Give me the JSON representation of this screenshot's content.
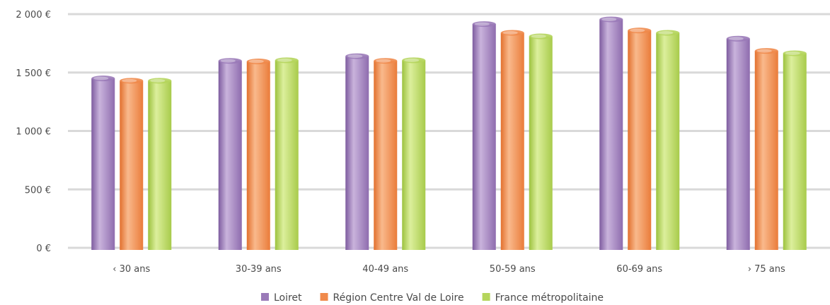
{
  "chart_data": {
    "type": "bar",
    "categories": [
      "‹ 30 ans",
      "30-39 ans",
      "40-49 ans",
      "50-59 ans",
      "60-69 ans",
      "› 75 ans"
    ],
    "series": [
      {
        "name": "Loiret",
        "color": "#9a7ab8",
        "values": [
          1450,
          1600,
          1640,
          1915,
          1955,
          1790
        ]
      },
      {
        "name": "Région Centre Val de Loire",
        "color": "#f08a4b",
        "values": [
          1430,
          1595,
          1600,
          1840,
          1860,
          1685
        ]
      },
      {
        "name": "France métropolitaine",
        "color": "#b5d55c",
        "values": [
          1430,
          1605,
          1605,
          1810,
          1840,
          1665
        ]
      }
    ],
    "y_ticks": [
      {
        "value": 0,
        "label": "0 €"
      },
      {
        "value": 500,
        "label": "500 €"
      },
      {
        "value": 1000,
        "label": "1 000 €"
      },
      {
        "value": 1500,
        "label": "1 500 €"
      },
      {
        "value": 2000,
        "label": "2 000 €"
      }
    ],
    "ylim": [
      0,
      2000
    ],
    "grid": true,
    "legend_position": "bottom-center"
  }
}
